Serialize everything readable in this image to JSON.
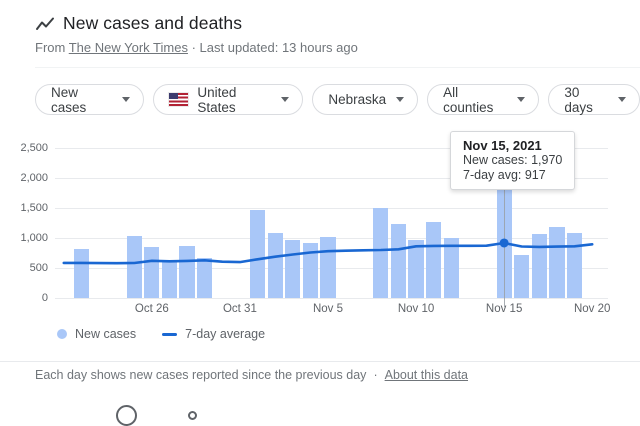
{
  "header": {
    "title": "New cases and deaths",
    "source_prefix": "From",
    "source_link": "The New York Times",
    "separator": "·",
    "updated": "Last updated: 13 hours ago"
  },
  "filters": [
    {
      "label": "New cases"
    },
    {
      "label": "United States",
      "flag": "us-flag"
    },
    {
      "label": "Nebraska"
    },
    {
      "label": "All counties"
    },
    {
      "label": "30 days"
    }
  ],
  "tooltip": {
    "title": "Nov 15, 2021",
    "line1": "New cases: 1,970",
    "line2": "7-day avg: 917"
  },
  "legend": [
    {
      "label": "New cases",
      "swatch": "dot"
    },
    {
      "label": "7-day average",
      "swatch": "line"
    }
  ],
  "footer": {
    "text": "Each day shows new cases reported since the previous day",
    "separator": "·",
    "link": "About this data"
  },
  "colors": {
    "bar": "#a9c7f8",
    "line": "#1967d2",
    "grid": "#e8eaed",
    "axis_text": "#5f6368",
    "hover_line": "#9aa0a6"
  },
  "chart_data": {
    "type": "bar",
    "title": "New cases and deaths",
    "xlabel": "",
    "ylabel": "",
    "ylim": [
      0,
      2500
    ],
    "y_ticks": [
      0,
      500,
      1000,
      1500,
      2000,
      2500
    ],
    "y_tick_labels": [
      "0",
      "500",
      "1,000",
      "1,500",
      "2,000",
      "2,500"
    ],
    "x": [
      "Oct 21",
      "Oct 22",
      "Oct 23",
      "Oct 24",
      "Oct 25",
      "Oct 26",
      "Oct 27",
      "Oct 28",
      "Oct 29",
      "Oct 30",
      "Oct 31",
      "Nov 1",
      "Nov 2",
      "Nov 3",
      "Nov 4",
      "Nov 5",
      "Nov 6",
      "Nov 7",
      "Nov 8",
      "Nov 9",
      "Nov 10",
      "Nov 11",
      "Nov 12",
      "Nov 13",
      "Nov 14",
      "Nov 15",
      "Nov 16",
      "Nov 17",
      "Nov 18",
      "Nov 19",
      "Nov 20"
    ],
    "x_tick_labels": [
      "Oct 26",
      "Oct 31",
      "Nov 5",
      "Nov 10",
      "Nov 15",
      "Nov 20"
    ],
    "series": [
      {
        "name": "New cases",
        "type": "bar",
        "values": [
          null,
          820,
          null,
          null,
          1040,
          855,
          620,
          870,
          660,
          null,
          null,
          1470,
          1090,
          965,
          910,
          1020,
          null,
          null,
          1500,
          1230,
          965,
          1270,
          1005,
          null,
          null,
          1970,
          720,
          1060,
          1190,
          1090,
          null
        ]
      },
      {
        "name": "7-day average",
        "type": "line",
        "values": [
          585,
          585,
          582,
          580,
          583,
          620,
          612,
          618,
          628,
          605,
          598,
          645,
          688,
          725,
          758,
          780,
          788,
          795,
          800,
          812,
          862,
          868,
          870,
          870,
          872,
          917,
          858,
          852,
          856,
          862,
          895
        ]
      }
    ],
    "highlight": {
      "date": "Nov 15",
      "new_cases": 1970,
      "seven_day_avg": 917
    },
    "legend_position": "bottom",
    "grid": true
  }
}
